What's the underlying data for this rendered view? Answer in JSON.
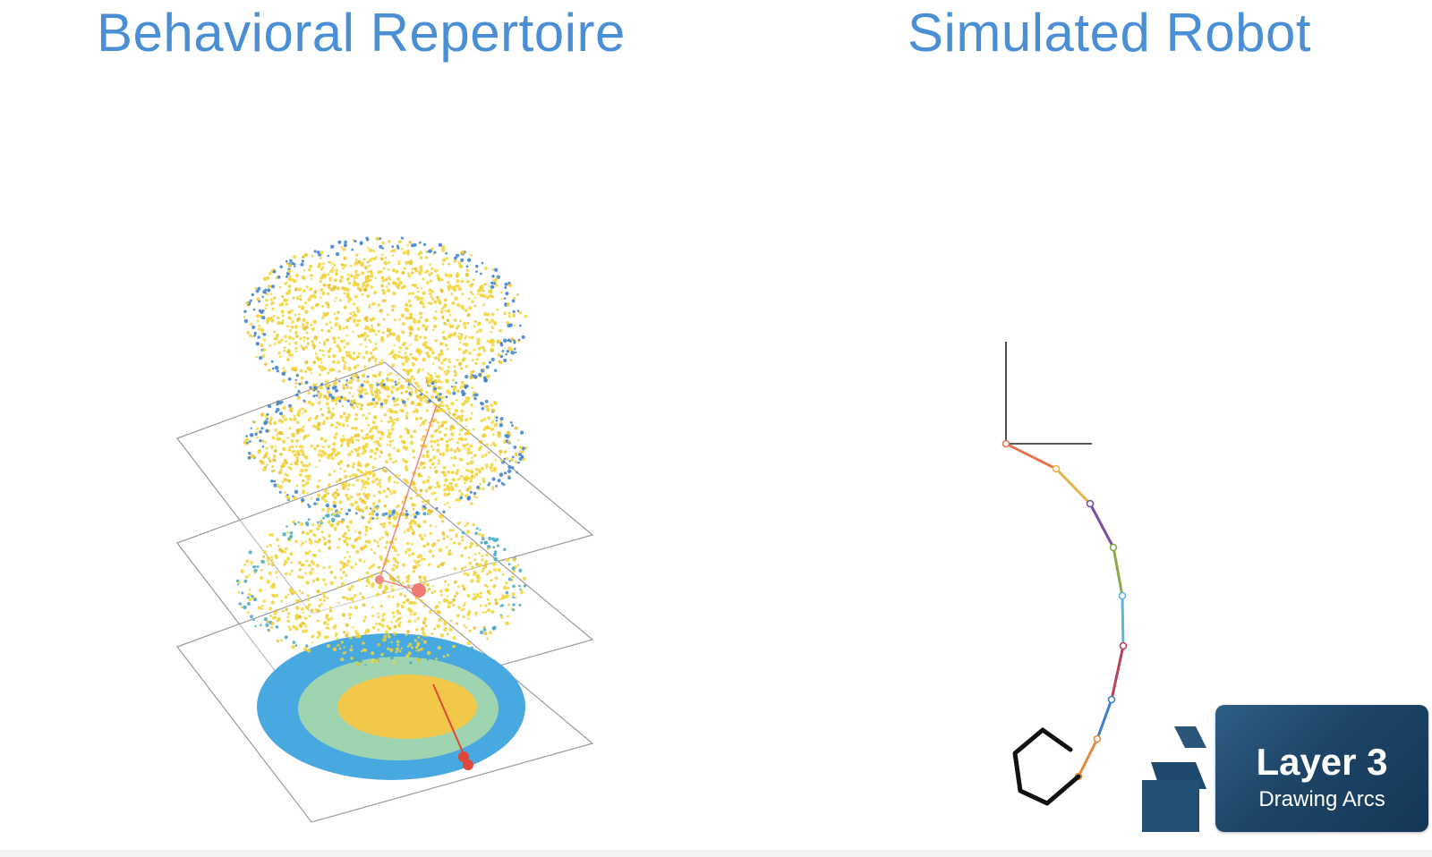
{
  "titles": {
    "left": "Behavioral Repertoire",
    "right": "Simulated Robot"
  },
  "badge": {
    "title": "Layer 3",
    "subtitle": "Drawing Arcs",
    "logo_icon": "stacked-blocks-logo"
  },
  "colors": {
    "title": "#4a8fd6",
    "point_cloud_main": "#f2d43a",
    "point_cloud_edge": "#3b7fd0",
    "trajectory": "#e0463a",
    "badge_bg": "#1d4466",
    "arm_segments": [
      "#e3764a",
      "#e9b04a",
      "#7a4fa0",
      "#8aa84a",
      "#5fb3e0",
      "#b8405a",
      "#3b7fd0",
      "#e08a3a"
    ]
  },
  "icons": [
    "stacked-blocks-logo"
  ]
}
